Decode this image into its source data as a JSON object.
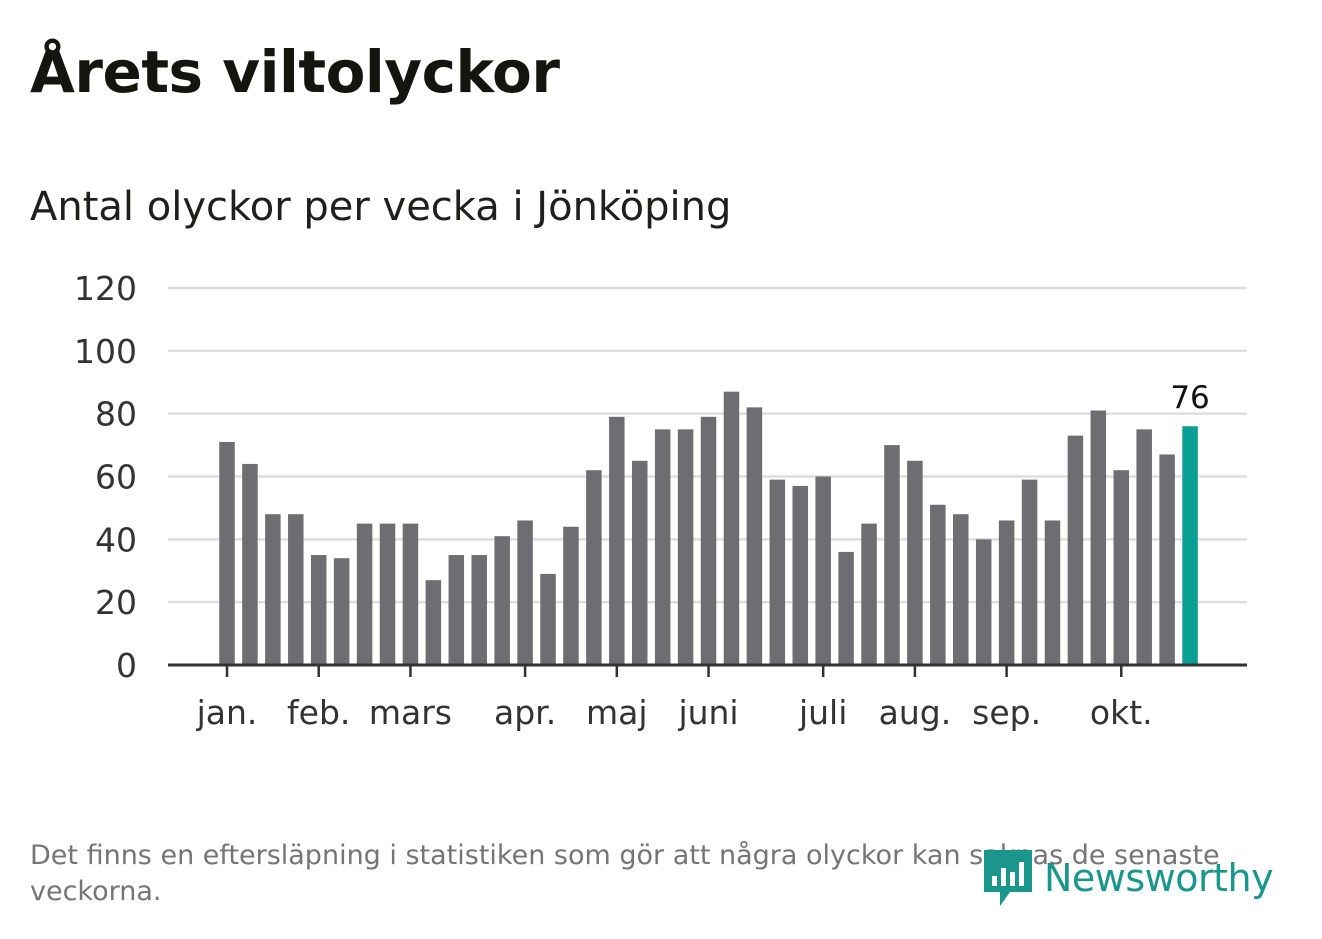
{
  "header": {
    "title": "Årets viltolyckor",
    "subtitle": "Antal olyckor per vecka i Jönköping"
  },
  "footnote": "Det finns en eftersläpning i statistiken som gör att några olyckor kan saknas de senaste veckorna.",
  "brand": {
    "name": "Newsworthy",
    "logo_icon": "speech-bubble-bar-chart-icon",
    "color": "#1a968c"
  },
  "chart_data": {
    "type": "bar",
    "values": [
      71,
      64,
      48,
      48,
      35,
      34,
      45,
      45,
      45,
      27,
      35,
      35,
      41,
      46,
      29,
      44,
      62,
      79,
      65,
      75,
      75,
      79,
      87,
      82,
      59,
      57,
      60,
      36,
      45,
      70,
      65,
      51,
      48,
      40,
      46,
      59,
      46,
      73,
      81,
      62,
      75,
      67,
      76
    ],
    "month_ticks": [
      {
        "label": "jan.",
        "index": 0
      },
      {
        "label": "feb.",
        "index": 4
      },
      {
        "label": "mars",
        "index": 8
      },
      {
        "label": "apr.",
        "index": 13
      },
      {
        "label": "maj",
        "index": 17
      },
      {
        "label": "juni",
        "index": 21
      },
      {
        "label": "juli",
        "index": 26
      },
      {
        "label": "aug.",
        "index": 30
      },
      {
        "label": "sep.",
        "index": 34
      },
      {
        "label": "okt.",
        "index": 39
      }
    ],
    "y_ticks": [
      0,
      20,
      40,
      60,
      80,
      100,
      120
    ],
    "ylim": [
      0,
      120
    ],
    "highlight": {
      "index": 42,
      "label": "76"
    },
    "colors": {
      "bar": "#6d6d72",
      "highlight": "#0a9e95",
      "grid": "#dedede",
      "axis": "#333333"
    },
    "grid": true
  }
}
